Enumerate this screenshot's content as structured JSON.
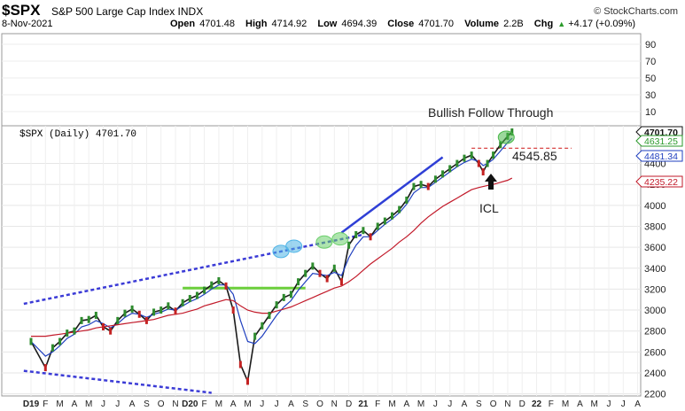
{
  "header": {
    "symbol": "$SPX",
    "name": "S&P 500 Large Cap Index INDX",
    "brand": "© StockCharts.com",
    "date": "8-Nov-2021",
    "open_label": "Open",
    "open": "4701.48",
    "high_label": "High",
    "high": "4714.92",
    "low_label": "Low",
    "low": "4694.39",
    "close_label": "Close",
    "close": "4701.70",
    "volume_label": "Volume",
    "volume": "2.2B",
    "chg_label": "Chg",
    "chg": "+4.17 (+0.09%)",
    "chg_arrow": "▲"
  },
  "chart_data": {
    "type": "line",
    "title": "",
    "legend": "$SPX (Daily) 4701.70",
    "upper_panel_ticks": [
      "90",
      "70",
      "50",
      "30",
      "10"
    ],
    "y_ticks": [
      2200,
      2400,
      2600,
      2800,
      3000,
      3200,
      3400,
      3600,
      3800,
      4000,
      4200,
      4400
    ],
    "ylim": [
      2180,
      4760
    ],
    "x_ticks": [
      "D19",
      "F",
      "M",
      "A",
      "M",
      "J",
      "J",
      "A",
      "S",
      "O",
      "N",
      "D20",
      "F",
      "M",
      "A",
      "M",
      "J",
      "J",
      "A",
      "S",
      "O",
      "N",
      "D",
      "21",
      "F",
      "M",
      "A",
      "M",
      "J",
      "J",
      "A",
      "S",
      "O",
      "N",
      "D",
      "22",
      "F",
      "M",
      "A",
      "M",
      "J",
      "J",
      "A"
    ],
    "x": [
      0,
      1,
      1.5,
      2,
      2.5,
      3,
      3.5,
      4,
      4.5,
      5,
      5.5,
      6,
      6.5,
      7,
      7.5,
      8,
      8.5,
      9,
      9.5,
      10,
      10.5,
      11,
      11.5,
      12,
      12.5,
      13,
      13.5,
      14,
      14.5,
      15,
      15.5,
      16,
      16.5,
      17,
      17.5,
      18,
      18.5,
      19,
      19.5,
      20,
      20.5,
      21,
      21.5,
      22,
      22.5,
      23,
      23.5,
      24,
      24.5,
      25,
      25.5,
      26,
      26.5,
      27,
      27.5,
      28,
      28.5,
      29,
      29.5,
      30,
      30.5,
      31,
      31.3,
      31.6,
      32,
      32.5,
      33,
      33.3
    ],
    "series": [
      {
        "name": "$SPX",
        "color": "#1a1a1a",
        "values": [
          2700,
          2450,
          2640,
          2700,
          2780,
          2800,
          2900,
          2910,
          2950,
          2840,
          2800,
          2900,
          2970,
          3010,
          2960,
          2900,
          2980,
          3000,
          3040,
          2990,
          3070,
          3110,
          3140,
          3190,
          3240,
          3280,
          3230,
          3000,
          2480,
          2320,
          2750,
          2850,
          2950,
          3050,
          3120,
          3150,
          3270,
          3350,
          3420,
          3350,
          3300,
          3400,
          3270,
          3620,
          3720,
          3760,
          3700,
          3800,
          3850,
          3900,
          3960,
          4050,
          4180,
          4200,
          4180,
          4250,
          4300,
          4350,
          4400,
          4450,
          4480,
          4400,
          4320,
          4400,
          4480,
          4580,
          4660,
          4701
        ]
      },
      {
        "name": "",
        "color": "#1f3fbf",
        "values": [
          2700,
          2560,
          2600,
          2660,
          2730,
          2770,
          2840,
          2860,
          2900,
          2870,
          2830,
          2870,
          2930,
          2970,
          2960,
          2930,
          2960,
          2980,
          3010,
          3000,
          3040,
          3080,
          3110,
          3150,
          3200,
          3240,
          3240,
          3150,
          2900,
          2700,
          2680,
          2750,
          2850,
          2950,
          3030,
          3090,
          3190,
          3270,
          3350,
          3340,
          3330,
          3360,
          3330,
          3500,
          3620,
          3700,
          3700,
          3760,
          3820,
          3870,
          3930,
          4010,
          4120,
          4170,
          4170,
          4220,
          4270,
          4320,
          4370,
          4410,
          4440,
          4420,
          4380,
          4400,
          4440,
          4520,
          4600,
          4640
        ]
      },
      {
        "name": "",
        "color": "#c21a2a",
        "values": [
          2750,
          2750,
          2760,
          2770,
          2780,
          2790,
          2800,
          2810,
          2830,
          2840,
          2850,
          2860,
          2870,
          2880,
          2890,
          2900,
          2910,
          2930,
          2950,
          2960,
          2970,
          2990,
          3010,
          3040,
          3060,
          3080,
          3100,
          3090,
          3040,
          3000,
          2980,
          2970,
          2970,
          2990,
          3010,
          3030,
          3060,
          3090,
          3120,
          3150,
          3180,
          3210,
          3230,
          3270,
          3320,
          3380,
          3440,
          3490,
          3540,
          3590,
          3650,
          3700,
          3760,
          3830,
          3890,
          3940,
          3990,
          4030,
          4070,
          4110,
          4150,
          4170,
          4180,
          4190,
          4200,
          4220,
          4240,
          4260
        ]
      }
    ],
    "x_axis_labels_present": true,
    "right_axis_tags": [
      {
        "text": "4701.70",
        "color": "#111111",
        "bold": true
      },
      {
        "text": "4631.25",
        "color": "#2a9a2a",
        "bold": false
      },
      {
        "text": "4481.34",
        "color": "#1f3fbf",
        "bold": false
      },
      {
        "text": "4235.22",
        "color": "#c21a2a",
        "bold": false
      }
    ],
    "annotations": {
      "bullish": "Bullish Follow Through",
      "level": "4545.85",
      "icl": "ICL"
    },
    "trendlines": {
      "upper": [
        [
          -0.5,
          3060
        ],
        [
          23,
          3720
        ]
      ],
      "lower": [
        [
          -0.5,
          2420
        ],
        [
          12.5,
          2210
        ]
      ],
      "support": [
        [
          10.5,
          3210
        ],
        [
          19,
          3210
        ]
      ],
      "rising": [
        [
          21.5,
          3740
        ],
        [
          28.5,
          4460
        ]
      ],
      "level_y": 4545.85
    },
    "highlights": [
      {
        "x": 17.3,
        "y": 3560,
        "color": "#4fb4e6"
      },
      {
        "x": 18.2,
        "y": 3610,
        "color": "#4fb4e6"
      },
      {
        "x": 20.3,
        "y": 3650,
        "color": "#6ccf6c"
      },
      {
        "x": 21.4,
        "y": 3680,
        "color": "#6ccf6c"
      },
      {
        "x": 32.9,
        "y": 4650,
        "color": "#4ab84a"
      }
    ]
  }
}
